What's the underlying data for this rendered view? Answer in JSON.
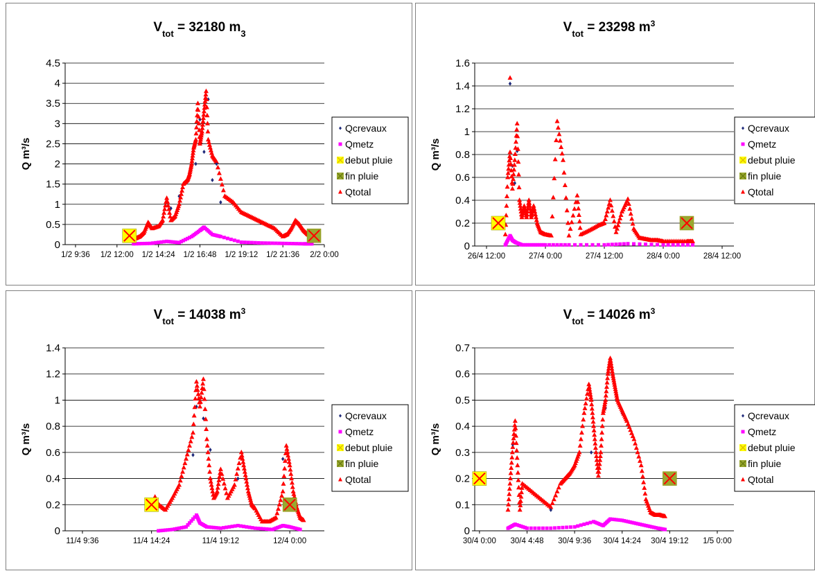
{
  "legend_labels": [
    "Qcrevaux",
    "Qmetz",
    "debut pluie",
    "fin pluie",
    "Qtotal"
  ],
  "colors": {
    "qcrevaux": "#1f2a7a",
    "qmetz": "#ff00ff",
    "qtotal": "#ff0000",
    "debut_fill": "#ffff00",
    "fin_fill": "#99a830",
    "cross": "#ff0000",
    "grid": "#000000"
  },
  "chart_data": [
    {
      "type": "scatter",
      "title": {
        "main": "V",
        "sub": "tot",
        "rest": " = 32180 m",
        "unit_sub": "3",
        "unit_sup": ""
      },
      "ylabel": "Q m³/s",
      "xlabel": "",
      "grid": true,
      "legend_position": "right",
      "xlim": [
        0.375,
        1.0
      ],
      "ylim": [
        0,
        4.5
      ],
      "yticks": [
        "0",
        "0.5",
        "1",
        "1.5",
        "2",
        "2.5",
        "3",
        "3.5",
        "4",
        "4.5"
      ],
      "ytick_values": [
        0,
        0.5,
        1,
        1.5,
        2,
        2.5,
        3,
        3.5,
        4,
        4.5
      ],
      "xticks": [
        "1/2 9:36",
        "1/2 12:00",
        "1/2 14:24",
        "1/2 16:48",
        "1/2 19:12",
        "1/2 21:36",
        "2/2 0:00"
      ],
      "xtick_values": [
        0.4,
        0.5,
        0.6,
        0.7,
        0.8,
        0.9,
        1.0
      ],
      "markers": {
        "debut": [
          0.53,
          0.22
        ],
        "fin": [
          0.975,
          0.22
        ]
      },
      "series": [
        {
          "name": "Qtotal",
          "x": [
            0.545,
            0.555,
            0.565,
            0.575,
            0.585,
            0.6,
            0.61,
            0.62,
            0.63,
            0.64,
            0.65,
            0.66,
            0.67,
            0.675,
            0.68,
            0.685,
            0.69,
            0.695,
            0.7,
            0.705,
            0.71,
            0.715,
            0.72,
            0.73,
            0.74,
            0.76,
            0.78,
            0.8,
            0.82,
            0.84,
            0.86,
            0.88,
            0.9,
            0.91,
            0.92,
            0.93,
            0.94,
            0.95,
            0.96,
            0.97
          ],
          "y": [
            0.15,
            0.2,
            0.3,
            0.55,
            0.4,
            0.45,
            0.6,
            1.15,
            0.6,
            0.7,
            1.0,
            1.5,
            1.6,
            1.75,
            2.0,
            2.4,
            2.6,
            3.5,
            2.5,
            2.8,
            3.3,
            3.8,
            2.6,
            2.2,
            2.05,
            1.2,
            1.05,
            0.8,
            0.7,
            0.6,
            0.5,
            0.4,
            0.2,
            0.25,
            0.4,
            0.6,
            0.5,
            0.35,
            0.25,
            0.2
          ]
        },
        {
          "name": "Qcrevaux",
          "x": [
            0.63,
            0.65,
            0.67,
            0.69,
            0.7,
            0.71,
            0.72,
            0.73,
            0.74,
            0.75
          ],
          "y": [
            0.9,
            1.2,
            1.6,
            2.0,
            3.1,
            2.3,
            3.6,
            1.6,
            2.0,
            1.05
          ]
        },
        {
          "name": "Qmetz",
          "x": [
            0.54,
            0.58,
            0.62,
            0.65,
            0.68,
            0.7,
            0.71,
            0.73,
            0.75,
            0.8,
            0.85,
            0.9,
            0.95,
            0.97
          ],
          "y": [
            0.02,
            0.03,
            0.08,
            0.05,
            0.2,
            0.35,
            0.43,
            0.25,
            0.2,
            0.06,
            0.04,
            0.03,
            0.02,
            0.02
          ]
        }
      ]
    },
    {
      "type": "scatter",
      "title": {
        "main": "V",
        "sub": "tot",
        "rest": " = 23298 m",
        "unit_sub": "",
        "unit_sup": "3"
      },
      "ylabel": "Q m³/s",
      "xlabel": "",
      "grid": true,
      "legend_position": "right",
      "xlim": [
        0.4,
        2.6
      ],
      "ylim": [
        0,
        1.6
      ],
      "yticks": [
        "0",
        "0.2",
        "0.4",
        "0.6",
        "0.8",
        "1",
        "1.2",
        "1.4",
        "1.6"
      ],
      "ytick_values": [
        0,
        0.2,
        0.4,
        0.6,
        0.8,
        1.0,
        1.2,
        1.4,
        1.6
      ],
      "xticks": [
        "26/4 12:00",
        "27/4 0:00",
        "27/4 12:00",
        "28/4 0:00",
        "28/4 12:00"
      ],
      "xtick_values": [
        0.5,
        1.0,
        1.5,
        2.0,
        2.5
      ],
      "markers": {
        "debut": [
          0.6,
          0.2
        ],
        "fin": [
          2.2,
          0.2
        ]
      },
      "series": [
        {
          "name": "Qtotal",
          "x": [
            0.66,
            0.68,
            0.7,
            0.72,
            0.74,
            0.76,
            0.78,
            0.8,
            0.82,
            0.84,
            0.86,
            0.88,
            0.9,
            0.93,
            0.96,
            1.0,
            1.05,
            1.1,
            1.15,
            1.2,
            1.27,
            1.3,
            1.38,
            1.45,
            1.5,
            1.55,
            1.6,
            1.65,
            1.7,
            1.75,
            1.8,
            1.85,
            1.9,
            1.95,
            2.0,
            2.1,
            2.2,
            2.25
          ],
          "y": [
            0.1,
            0.6,
            0.82,
            0.5,
            0.75,
            1.07,
            0.4,
            0.25,
            0.35,
            0.25,
            0.4,
            0.25,
            0.35,
            0.2,
            0.12,
            0.1,
            0.09,
            1.09,
            0.75,
            0.09,
            0.44,
            0.1,
            0.14,
            0.18,
            0.2,
            0.4,
            0.12,
            0.3,
            0.41,
            0.15,
            0.07,
            0.06,
            0.05,
            0.05,
            0.04,
            0.04,
            0.04,
            0.04
          ]
        },
        {
          "name": "Qtotal",
          "x": [
            0.7
          ],
          "y": [
            1.47
          ]
        },
        {
          "name": "Qcrevaux",
          "x": [
            0.7,
            0.72,
            0.74,
            0.76
          ],
          "y": [
            1.42,
            0.7,
            0.55,
            0.83
          ]
        },
        {
          "name": "Qmetz",
          "x": [
            0.66,
            0.7,
            0.72,
            0.75,
            0.8,
            0.9,
            1.0,
            1.2,
            1.5,
            1.7,
            2.0,
            2.25
          ],
          "y": [
            0.01,
            0.09,
            0.05,
            0.03,
            0.01,
            0.01,
            0.01,
            0.01,
            0.01,
            0.02,
            0.01,
            0.01
          ]
        }
      ]
    },
    {
      "type": "scatter",
      "title": {
        "main": "V",
        "sub": "tot",
        "rest": " = 14038 m",
        "unit_sub": "",
        "unit_sup": "3"
      },
      "ylabel": "Q m³/s",
      "xlabel": "",
      "grid": true,
      "legend_position": "right",
      "xlim": [
        0.35,
        1.1
      ],
      "ylim": [
        0,
        1.4
      ],
      "yticks": [
        "0",
        "0.2",
        "0.4",
        "0.6",
        "0.8",
        "1",
        "1.2",
        "1.4"
      ],
      "ytick_values": [
        0,
        0.2,
        0.4,
        0.6,
        0.8,
        1.0,
        1.2,
        1.4
      ],
      "xticks": [
        "11/4 9:36",
        "11/4 14:24",
        "11/4 19:12",
        "12/4 0:00"
      ],
      "xtick_values": [
        0.4,
        0.6,
        0.8,
        1.0
      ],
      "markers": {
        "debut": [
          0.6,
          0.2
        ],
        "fin": [
          1.0,
          0.2
        ]
      },
      "series": [
        {
          "name": "Qtotal",
          "x": [
            0.6,
            0.61,
            0.62,
            0.64,
            0.66,
            0.68,
            0.7,
            0.72,
            0.73,
            0.74,
            0.75,
            0.76,
            0.77,
            0.78,
            0.79,
            0.8,
            0.82,
            0.84,
            0.86,
            0.87,
            0.88,
            0.89,
            0.9,
            0.92,
            0.94,
            0.96,
            0.98,
            0.99,
            1.0,
            1.01,
            1.02,
            1.03,
            1.04
          ],
          "y": [
            0.18,
            0.26,
            0.2,
            0.16,
            0.25,
            0.35,
            0.55,
            0.75,
            1.14,
            0.95,
            1.16,
            0.7,
            0.4,
            0.25,
            0.3,
            0.47,
            0.25,
            0.35,
            0.6,
            0.45,
            0.3,
            0.2,
            0.17,
            0.07,
            0.07,
            0.1,
            0.3,
            0.65,
            0.5,
            0.3,
            0.18,
            0.1,
            0.08
          ]
        },
        {
          "name": "Qcrevaux",
          "x": [
            0.72,
            0.73,
            0.75,
            0.77,
            0.85,
            0.98
          ],
          "y": [
            0.58,
            0.95,
            0.86,
            0.62,
            0.4,
            0.55
          ]
        },
        {
          "name": "Qmetz",
          "x": [
            0.62,
            0.66,
            0.7,
            0.73,
            0.74,
            0.76,
            0.8,
            0.85,
            0.9,
            0.95,
            0.98,
            1.0,
            1.03
          ],
          "y": [
            0.0,
            0.01,
            0.03,
            0.12,
            0.06,
            0.03,
            0.02,
            0.04,
            0.02,
            0.01,
            0.04,
            0.03,
            0.01
          ]
        }
      ]
    },
    {
      "type": "scatter",
      "title": {
        "main": "V",
        "sub": "tot",
        "rest": " = 14026 m",
        "unit_sub": "",
        "unit_sup": "3"
      },
      "ylabel": "Q m³/s",
      "xlabel": "",
      "grid": true,
      "legend_position": "right",
      "xlim": [
        -0.02,
        1.07
      ],
      "ylim": [
        0,
        0.7
      ],
      "yticks": [
        "0",
        "0.1",
        "0.2",
        "0.3",
        "0.4",
        "0.5",
        "0.6",
        "0.7"
      ],
      "ytick_values": [
        0,
        0.1,
        0.2,
        0.3,
        0.4,
        0.5,
        0.6,
        0.7
      ],
      "xticks": [
        "30/4 0:00",
        "30/4 4:48",
        "30/4 9:36",
        "30/4 14:24",
        "30/4 19:12",
        "1/5 0:00"
      ],
      "xtick_values": [
        0.0,
        0.2,
        0.4,
        0.6,
        0.8,
        1.0
      ],
      "markers": {
        "debut": [
          0.0,
          0.2
        ],
        "fin": [
          0.8,
          0.2
        ]
      },
      "series": [
        {
          "name": "Qtotal",
          "x": [
            0.12,
            0.13,
            0.14,
            0.15,
            0.16,
            0.17,
            0.18,
            0.22,
            0.26,
            0.3,
            0.34,
            0.36,
            0.38,
            0.4,
            0.42,
            0.44,
            0.46,
            0.47,
            0.48,
            0.49,
            0.5,
            0.51,
            0.52,
            0.53,
            0.54,
            0.55,
            0.56,
            0.57,
            0.58,
            0.6,
            0.62,
            0.65,
            0.68,
            0.7,
            0.72,
            0.74,
            0.76,
            0.78
          ],
          "y": [
            0.08,
            0.2,
            0.32,
            0.42,
            0.25,
            0.08,
            0.18,
            0.15,
            0.12,
            0.09,
            0.18,
            0.2,
            0.22,
            0.25,
            0.3,
            0.45,
            0.56,
            0.5,
            0.4,
            0.3,
            0.21,
            0.3,
            0.45,
            0.5,
            0.6,
            0.66,
            0.6,
            0.55,
            0.5,
            0.46,
            0.42,
            0.35,
            0.25,
            0.12,
            0.07,
            0.06,
            0.06,
            0.055
          ]
        },
        {
          "name": "Qcrevaux",
          "x": [
            0.14,
            0.3,
            0.47,
            0.53,
            0.6
          ],
          "y": [
            0.33,
            0.08,
            0.3,
            0.47,
            0.45
          ]
        },
        {
          "name": "Qmetz",
          "x": [
            0.12,
            0.15,
            0.2,
            0.3,
            0.4,
            0.48,
            0.52,
            0.55,
            0.6,
            0.65,
            0.7,
            0.75,
            0.78
          ],
          "y": [
            0.01,
            0.025,
            0.01,
            0.01,
            0.015,
            0.035,
            0.02,
            0.045,
            0.04,
            0.03,
            0.02,
            0.01,
            0.005
          ]
        }
      ]
    }
  ]
}
